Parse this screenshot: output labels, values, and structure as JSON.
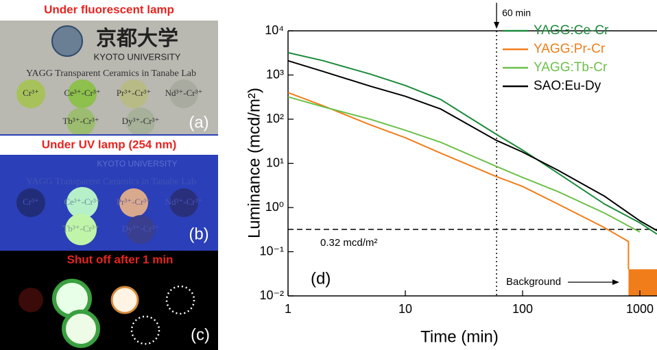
{
  "photos": [
    {
      "title": "Under fluorescent lamp",
      "label": "(a)",
      "logo": "京都大学",
      "university": "KYOTO UNIVERSITY",
      "caption": "YAGG Transparent Ceramics in Tanabe Lab",
      "samples": [
        "Cr³⁺",
        "Ce³⁺-Cr³⁺",
        "Pr³⁺-Cr³⁺",
        "Nd³⁺-Cr³⁺",
        "Tb³⁺-Cr³⁺",
        "Dy³⁺-Cr³⁺"
      ]
    },
    {
      "title": "Under UV lamp (254 nm)",
      "label": "(b)",
      "university": "KYOTO UNIVERSITY",
      "caption": "YAGG Transparent Ceramics in Tanabe Lab",
      "samples": [
        "Cr³⁺",
        "Ce³⁺-Cr³⁺",
        "Pr³⁺-Cr³⁺",
        "Nd³⁺-Cr³⁺",
        "Tb³⁺-Cr³⁺",
        "Dy³⁺-Cr³⁺"
      ]
    },
    {
      "title": "Shut off after 1 min",
      "label": "(c)"
    }
  ],
  "chart_data": {
    "type": "line",
    "label": "(d)",
    "x_label": "Time (min)",
    "y_label": "Luminance (mcd/m²)",
    "log_x": true,
    "log_y": true,
    "xlim": [
      1,
      1400
    ],
    "ylim": [
      0.01,
      10000
    ],
    "xticks": [
      1,
      10,
      100,
      1000
    ],
    "yticks": [
      {
        "value": 10000,
        "label": "10⁴"
      },
      {
        "value": 1000,
        "label": "10³"
      },
      {
        "value": 100,
        "label": "10²"
      },
      {
        "value": 10,
        "label": "10¹"
      },
      {
        "value": 1,
        "label": "10⁰"
      },
      {
        "value": 0.1,
        "label": "10⁻¹"
      },
      {
        "value": 0.01,
        "label": "10⁻²"
      }
    ],
    "series": [
      {
        "name": "YAGG:Ce-Cr",
        "color": "#1a8a3a",
        "x": [
          1,
          2,
          5,
          10,
          20,
          60,
          100,
          200,
          500,
          1000,
          1400
        ],
        "values": [
          3200,
          2100,
          1050,
          580,
          280,
          45,
          20,
          6,
          1.2,
          0.45,
          0.25
        ]
      },
      {
        "name": "YAGG:Pr-Cr",
        "color": "#f07d1a",
        "x": [
          1,
          2,
          5,
          10,
          20,
          60,
          100,
          200,
          500,
          800,
          800
        ],
        "values": [
          400,
          200,
          75,
          38,
          17,
          5,
          3,
          1.2,
          0.35,
          0.17,
          0.04
        ]
      },
      {
        "name": "YAGG:Tb-Cr",
        "color": "#6cc04a",
        "x": [
          1,
          2,
          5,
          10,
          20,
          60,
          100,
          200,
          500,
          1000
        ],
        "values": [
          320,
          190,
          100,
          56,
          30,
          8.5,
          4.8,
          2.3,
          0.75,
          0.28
        ]
      },
      {
        "name": "SAO:Eu-Dy",
        "color": "#000000",
        "x": [
          1,
          2,
          5,
          10,
          20,
          60,
          100,
          200,
          500,
          1000,
          1400
        ],
        "values": [
          2100,
          1200,
          560,
          330,
          170,
          33,
          18,
          7,
          1.8,
          0.5,
          0.3
        ]
      }
    ],
    "hline": {
      "value": 0.32,
      "label": "0.32 mcd/m²"
    },
    "vline": {
      "value": 60,
      "label": "60 min"
    },
    "background": {
      "x": 800,
      "value": 0.04,
      "label": "Background",
      "color": "#f07d1a"
    }
  }
}
